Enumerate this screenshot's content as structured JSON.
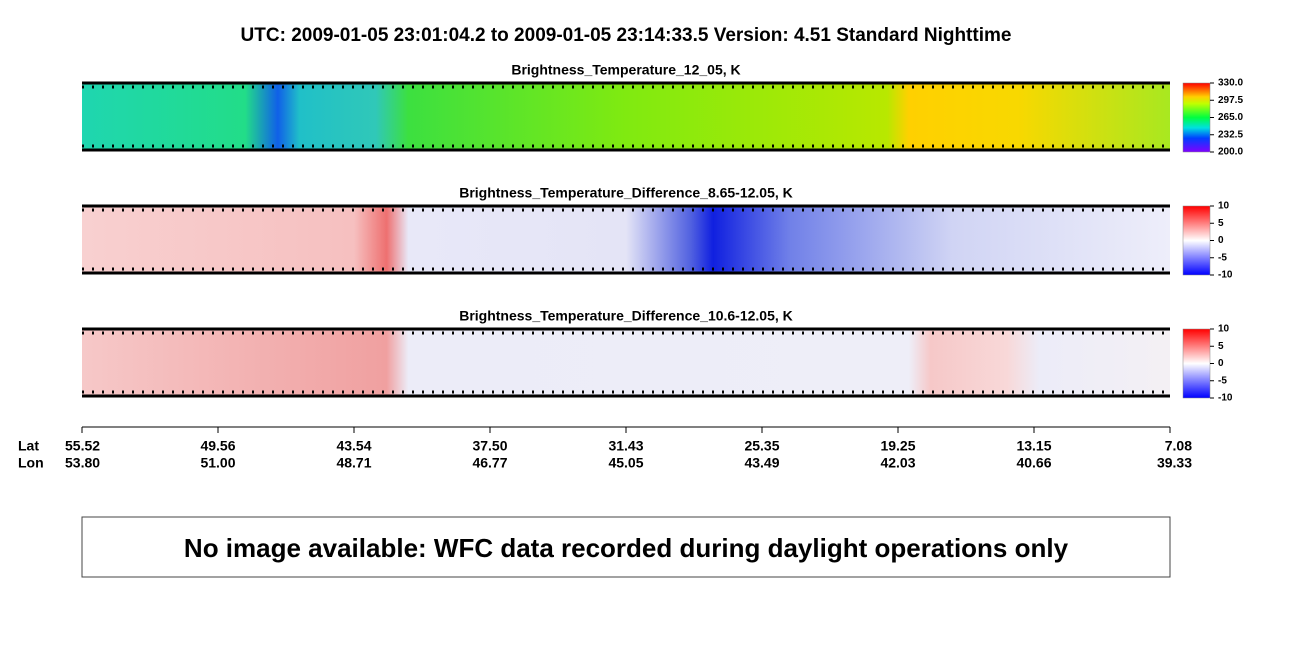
{
  "title": "UTC:  2009-01-05   23:01:04.2  to  2009-01-05   23:14:33.5    Version: 4.51  Standard Nighttime",
  "chart_data": [
    {
      "type": "heatmap",
      "title": "Brightness_Temperature_12_05, K",
      "colormap": "rainbow",
      "clim": [
        200,
        330
      ],
      "cticks": [
        {
          "value": 200,
          "label": "200.0"
        },
        {
          "value": 232.5,
          "label": "232.5"
        },
        {
          "value": 265,
          "label": "265.0"
        },
        {
          "value": 297.5,
          "label": "297.5"
        },
        {
          "value": 330,
          "label": "330.0"
        }
      ]
    },
    {
      "type": "heatmap",
      "title": "Brightness_Temperature_Difference_8.65-12.05, K",
      "colormap": "diverging",
      "clim": [
        -10,
        10
      ],
      "cticks": [
        -10,
        -5,
        0,
        5,
        10
      ]
    },
    {
      "type": "heatmap",
      "title": "Brightness_Temperature_Difference_10.6-12.05, K",
      "colormap": "diverging",
      "clim": [
        -10,
        10
      ],
      "cticks": [
        -10,
        -5,
        0,
        5,
        10
      ]
    }
  ],
  "axis": {
    "lat_label": "Lat",
    "lon_label": "Lon",
    "lat": [
      "55.52",
      "49.56",
      "43.54",
      "37.50",
      "31.43",
      "25.35",
      "19.25",
      "13.15",
      "7.08"
    ],
    "lon": [
      "53.80",
      "51.00",
      "48.71",
      "46.77",
      "45.05",
      "43.49",
      "42.03",
      "40.66",
      "39.33"
    ]
  },
  "notice": "No image available: WFC data recorded during daylight operations only"
}
